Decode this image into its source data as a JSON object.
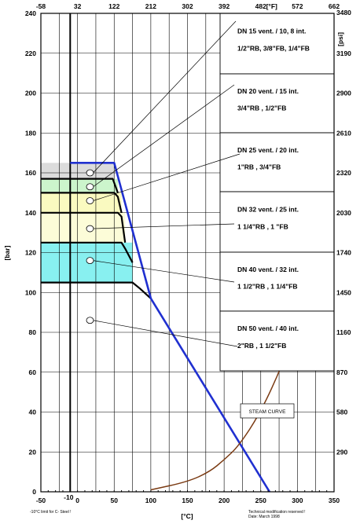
{
  "chart_data": {
    "type": "line",
    "xlabel": "[°C]",
    "ylabel": "[bar]",
    "xlim": [
      -50,
      350
    ],
    "ylim": [
      0,
      240
    ],
    "x_ticks": [
      -50,
      -10,
      0,
      50,
      100,
      150,
      200,
      250,
      300,
      350
    ],
    "y_ticks": [
      0,
      20,
      40,
      60,
      80,
      100,
      120,
      140,
      160,
      180,
      200,
      220,
      240
    ],
    "top_axis": {
      "label": "[°F]",
      "ticks": [
        {
          "x": -50,
          "label": "-58"
        },
        {
          "x": 0,
          "label": "32"
        },
        {
          "x": 50,
          "label": "122"
        },
        {
          "x": 100,
          "label": "212"
        },
        {
          "x": 150,
          "label": "302"
        },
        {
          "x": 200,
          "label": "392"
        },
        {
          "x": 250,
          "label": "482"
        },
        {
          "x": 300,
          "label": "572"
        },
        {
          "x": 350,
          "label": "662"
        }
      ]
    },
    "right_axis": {
      "label": "[psi]",
      "ticks": [
        {
          "y": 240,
          "label": "3480"
        },
        {
          "y": 220,
          "label": "3190"
        },
        {
          "y": 200,
          "label": "2900"
        },
        {
          "y": 180,
          "label": "2610"
        },
        {
          "y": 160,
          "label": "2320"
        },
        {
          "y": 140,
          "label": "2030"
        },
        {
          "y": 120,
          "label": "1740"
        },
        {
          "y": 100,
          "label": "1450"
        },
        {
          "y": 80,
          "label": "1160"
        },
        {
          "y": 60,
          "label": "870"
        },
        {
          "y": 40,
          "label": "580"
        },
        {
          "y": 20,
          "label": "290"
        }
      ]
    },
    "bands": [
      {
        "color": "#dcdcdc",
        "y_top": 165,
        "y_bottom": 157,
        "x_end": 50
      },
      {
        "color": "#ccf5cc",
        "y_top": 157,
        "y_bottom": 150,
        "x_end": 55
      },
      {
        "color": "#fafac0",
        "y_top": 150,
        "y_bottom": 140,
        "x_end": 60
      },
      {
        "color": "#fcfcd8",
        "y_top": 140,
        "y_bottom": 125,
        "x_end": 65
      },
      {
        "color": "#88f0f0",
        "y_top": 125,
        "y_bottom": 105,
        "x_end": 75
      }
    ],
    "series": [
      {
        "role": "rating-limit",
        "color": "#2030d0",
        "points": [
          [
            -10,
            165
          ],
          [
            50,
            165
          ],
          [
            100,
            97
          ],
          [
            262,
            0
          ]
        ]
      },
      {
        "role": "steam-curve",
        "color": "#7a3a12",
        "points": [
          [
            100,
            1
          ],
          [
            150,
            5
          ],
          [
            180,
            10
          ],
          [
            200,
            16
          ],
          [
            220,
            23
          ],
          [
            250,
            40
          ],
          [
            280,
            64
          ],
          [
            300,
            86
          ],
          [
            320,
            113
          ]
        ]
      }
    ],
    "ratings": [
      {
        "y": 157,
        "points": [
          [
            -50,
            157
          ],
          [
            48,
            157
          ],
          [
            50,
            155
          ],
          [
            55,
            150
          ]
        ]
      },
      {
        "y": 150,
        "points": [
          [
            -50,
            150
          ],
          [
            50,
            150
          ],
          [
            55,
            148
          ],
          [
            60,
            140
          ]
        ]
      },
      {
        "y": 140,
        "points": [
          [
            -50,
            140
          ],
          [
            55,
            140
          ],
          [
            60,
            138
          ],
          [
            65,
            125
          ]
        ]
      },
      {
        "y": 125,
        "points": [
          [
            -50,
            125
          ],
          [
            60,
            125
          ],
          [
            65,
            122
          ],
          [
            75,
            115
          ]
        ]
      },
      {
        "y": 105,
        "points": [
          [
            -50,
            105
          ],
          [
            75,
            105
          ],
          [
            85,
            102
          ],
          [
            100,
            97
          ]
        ]
      }
    ],
    "annotations": [
      {
        "line1": "DN 15 vent. / 10, 8 int.",
        "line2": "1/2\"RB, 3/8\"FB, 1/4\"FB",
        "marker": [
          17,
          160
        ]
      },
      {
        "line1": "DN 20 vent. / 15 int.",
        "line2": "3/4\"RB , 1/2\"FB",
        "marker": [
          17,
          153
        ]
      },
      {
        "line1": "DN 25 vent. / 20 int.",
        "line2": "1\"RB , 3/4\"FB",
        "marker": [
          17,
          146
        ]
      },
      {
        "line1": "DN 32 vent. / 25 int.",
        "line2": "1 1/4\"RB , 1 \"FB",
        "marker": [
          17,
          132
        ]
      },
      {
        "line1": "DN 40 vent. / 32 int.",
        "line2": "1 1/2\"RB , 1 1/4\"FB",
        "marker": [
          17,
          116
        ]
      },
      {
        "line1": "DN 50 vent. / 40 int.",
        "line2": "2\"RB , 1 1/2\"FB",
        "marker": [
          17,
          86
        ]
      }
    ],
    "steam_label": "STEAM CURVE",
    "c_steel_note": "-10°C limit for C- Steel !",
    "footer_note": [
      "Technical modification reserved !",
      "Date: March 1998"
    ],
    "grid": true
  }
}
